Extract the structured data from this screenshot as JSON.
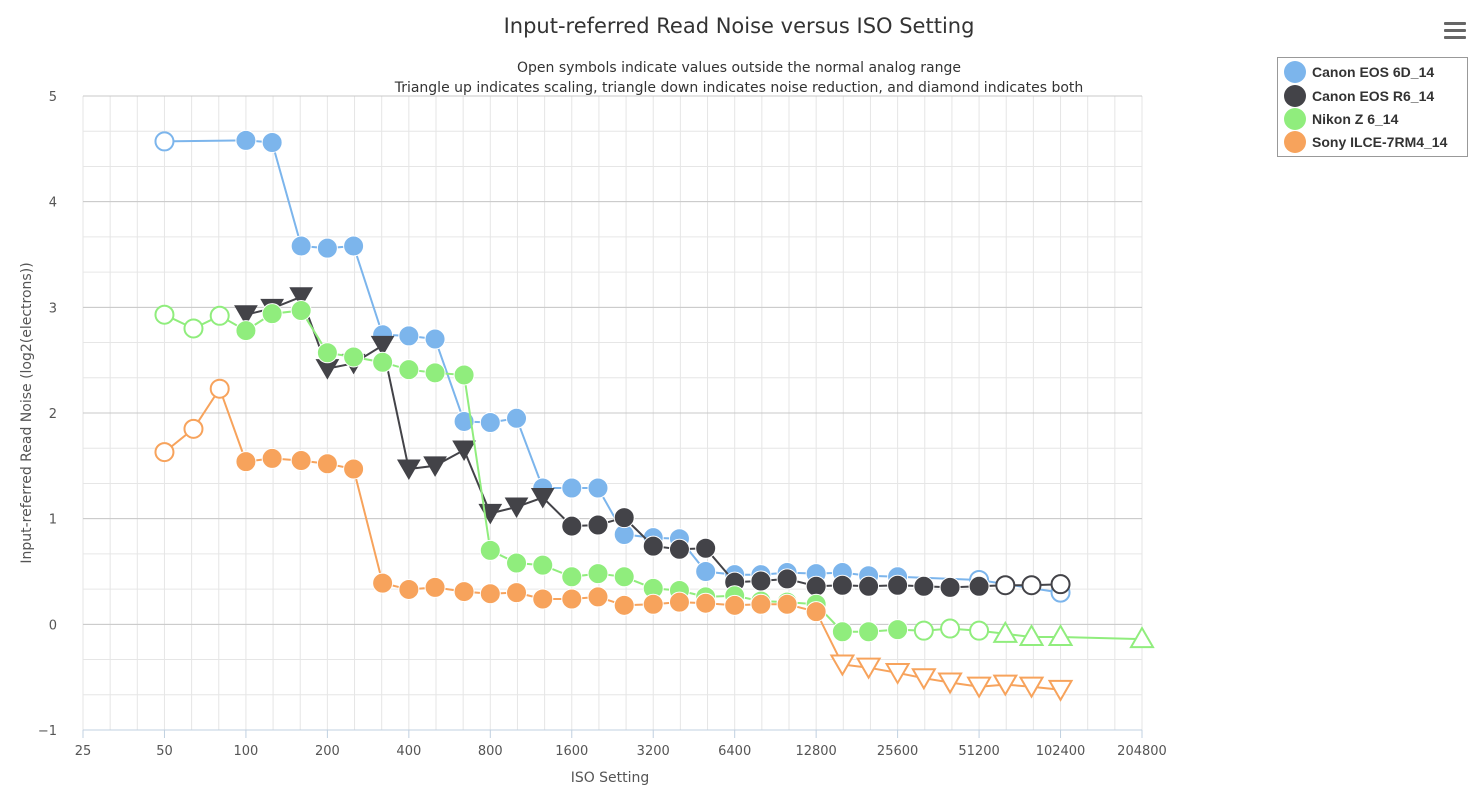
{
  "chart_data": {
    "type": "line",
    "title": "Input-referred Read Noise versus ISO Setting",
    "subtitle": [
      "Open symbols indicate values outside the normal analog range",
      "Triangle up indicates scaling, triangle down indicates noise reduction, and diamond indicates both"
    ],
    "xlabel": "ISO Setting",
    "ylabel": "Input-referred Read Noise (log2(electrons))",
    "x_scale": "log2",
    "xlim": [
      25,
      204800
    ],
    "ylim": [
      -1,
      5
    ],
    "x_ticks": [
      25,
      50,
      100,
      200,
      400,
      800,
      1600,
      3200,
      6400,
      12800,
      25600,
      51200,
      102400,
      204800
    ],
    "y_ticks": [
      -1,
      0,
      1,
      2,
      3,
      4,
      5
    ],
    "grid": true,
    "legend_position": "top-right",
    "series": [
      {
        "name": "Canon EOS 6D_14",
        "color": "#7cb5ec",
        "points": [
          {
            "x": 50,
            "y": 4.57,
            "marker": "circle",
            "open": true
          },
          {
            "x": 100,
            "y": 4.58,
            "marker": "circle"
          },
          {
            "x": 125,
            "y": 4.56,
            "marker": "circle"
          },
          {
            "x": 160,
            "y": 3.58,
            "marker": "circle"
          },
          {
            "x": 200,
            "y": 3.56,
            "marker": "circle"
          },
          {
            "x": 250,
            "y": 3.58,
            "marker": "circle"
          },
          {
            "x": 320,
            "y": 2.74,
            "marker": "circle"
          },
          {
            "x": 400,
            "y": 2.73,
            "marker": "circle"
          },
          {
            "x": 500,
            "y": 2.7,
            "marker": "circle"
          },
          {
            "x": 640,
            "y": 1.92,
            "marker": "circle"
          },
          {
            "x": 800,
            "y": 1.91,
            "marker": "circle"
          },
          {
            "x": 1000,
            "y": 1.95,
            "marker": "circle"
          },
          {
            "x": 1250,
            "y": 1.29,
            "marker": "circle"
          },
          {
            "x": 1600,
            "y": 1.29,
            "marker": "circle"
          },
          {
            "x": 2000,
            "y": 1.29,
            "marker": "circle"
          },
          {
            "x": 2500,
            "y": 0.85,
            "marker": "circle"
          },
          {
            "x": 3200,
            "y": 0.82,
            "marker": "circle"
          },
          {
            "x": 4000,
            "y": 0.81,
            "marker": "circle"
          },
          {
            "x": 5000,
            "y": 0.5,
            "marker": "circle"
          },
          {
            "x": 6400,
            "y": 0.47,
            "marker": "circle"
          },
          {
            "x": 8000,
            "y": 0.47,
            "marker": "circle"
          },
          {
            "x": 10000,
            "y": 0.49,
            "marker": "circle"
          },
          {
            "x": 12800,
            "y": 0.48,
            "marker": "circle"
          },
          {
            "x": 16000,
            "y": 0.49,
            "marker": "circle"
          },
          {
            "x": 20000,
            "y": 0.46,
            "marker": "circle"
          },
          {
            "x": 25600,
            "y": 0.45,
            "marker": "circle"
          },
          {
            "x": 51200,
            "y": 0.42,
            "marker": "circle",
            "open": true
          },
          {
            "x": 102400,
            "y": 0.3,
            "marker": "circle",
            "open": true
          }
        ]
      },
      {
        "name": "Canon EOS R6_14",
        "color": "#434348",
        "points": [
          {
            "x": 100,
            "y": 2.93,
            "marker": "triangle-down"
          },
          {
            "x": 125,
            "y": 2.99,
            "marker": "triangle-down"
          },
          {
            "x": 160,
            "y": 3.1,
            "marker": "triangle-down"
          },
          {
            "x": 200,
            "y": 2.42,
            "marker": "triangle-down"
          },
          {
            "x": 250,
            "y": 2.47,
            "marker": "triangle-down"
          },
          {
            "x": 320,
            "y": 2.64,
            "marker": "triangle-down"
          },
          {
            "x": 400,
            "y": 1.47,
            "marker": "triangle-down"
          },
          {
            "x": 500,
            "y": 1.5,
            "marker": "triangle-down"
          },
          {
            "x": 640,
            "y": 1.65,
            "marker": "triangle-down"
          },
          {
            "x": 800,
            "y": 1.05,
            "marker": "triangle-down"
          },
          {
            "x": 1000,
            "y": 1.11,
            "marker": "triangle-down"
          },
          {
            "x": 1250,
            "y": 1.2,
            "marker": "triangle-down"
          },
          {
            "x": 1600,
            "y": 0.93,
            "marker": "circle"
          },
          {
            "x": 2000,
            "y": 0.94,
            "marker": "circle"
          },
          {
            "x": 2500,
            "y": 1.01,
            "marker": "circle"
          },
          {
            "x": 3200,
            "y": 0.74,
            "marker": "circle"
          },
          {
            "x": 4000,
            "y": 0.71,
            "marker": "circle"
          },
          {
            "x": 5000,
            "y": 0.72,
            "marker": "circle"
          },
          {
            "x": 6400,
            "y": 0.4,
            "marker": "circle"
          },
          {
            "x": 8000,
            "y": 0.41,
            "marker": "circle"
          },
          {
            "x": 10000,
            "y": 0.43,
            "marker": "circle"
          },
          {
            "x": 12800,
            "y": 0.36,
            "marker": "circle"
          },
          {
            "x": 16000,
            "y": 0.37,
            "marker": "circle"
          },
          {
            "x": 20000,
            "y": 0.36,
            "marker": "circle"
          },
          {
            "x": 25600,
            "y": 0.37,
            "marker": "circle"
          },
          {
            "x": 32000,
            "y": 0.36,
            "marker": "circle"
          },
          {
            "x": 40000,
            "y": 0.35,
            "marker": "circle"
          },
          {
            "x": 51200,
            "y": 0.36,
            "marker": "circle"
          },
          {
            "x": 64000,
            "y": 0.37,
            "marker": "circle",
            "open": true
          },
          {
            "x": 80000,
            "y": 0.37,
            "marker": "circle",
            "open": true
          },
          {
            "x": 102400,
            "y": 0.38,
            "marker": "circle",
            "open": true
          }
        ]
      },
      {
        "name": "Nikon Z 6_14",
        "color": "#90ed7d",
        "points": [
          {
            "x": 50,
            "y": 2.93,
            "marker": "circle",
            "open": true
          },
          {
            "x": 64,
            "y": 2.8,
            "marker": "circle",
            "open": true
          },
          {
            "x": 80,
            "y": 2.92,
            "marker": "circle",
            "open": true
          },
          {
            "x": 100,
            "y": 2.78,
            "marker": "circle"
          },
          {
            "x": 125,
            "y": 2.94,
            "marker": "circle"
          },
          {
            "x": 160,
            "y": 2.97,
            "marker": "circle"
          },
          {
            "x": 200,
            "y": 2.57,
            "marker": "circle"
          },
          {
            "x": 250,
            "y": 2.53,
            "marker": "circle"
          },
          {
            "x": 320,
            "y": 2.48,
            "marker": "circle"
          },
          {
            "x": 400,
            "y": 2.41,
            "marker": "circle"
          },
          {
            "x": 500,
            "y": 2.38,
            "marker": "circle"
          },
          {
            "x": 640,
            "y": 2.36,
            "marker": "circle"
          },
          {
            "x": 800,
            "y": 0.7,
            "marker": "circle"
          },
          {
            "x": 1000,
            "y": 0.58,
            "marker": "circle"
          },
          {
            "x": 1250,
            "y": 0.56,
            "marker": "circle"
          },
          {
            "x": 1600,
            "y": 0.45,
            "marker": "circle"
          },
          {
            "x": 2000,
            "y": 0.48,
            "marker": "circle"
          },
          {
            "x": 2500,
            "y": 0.45,
            "marker": "circle"
          },
          {
            "x": 3200,
            "y": 0.34,
            "marker": "circle"
          },
          {
            "x": 4000,
            "y": 0.32,
            "marker": "circle"
          },
          {
            "x": 5000,
            "y": 0.26,
            "marker": "circle"
          },
          {
            "x": 6400,
            "y": 0.27,
            "marker": "circle"
          },
          {
            "x": 8000,
            "y": 0.22,
            "marker": "circle"
          },
          {
            "x": 10000,
            "y": 0.21,
            "marker": "circle"
          },
          {
            "x": 12800,
            "y": 0.19,
            "marker": "circle"
          },
          {
            "x": 16000,
            "y": -0.07,
            "marker": "circle"
          },
          {
            "x": 20000,
            "y": -0.07,
            "marker": "circle"
          },
          {
            "x": 25600,
            "y": -0.05,
            "marker": "circle"
          },
          {
            "x": 32000,
            "y": -0.06,
            "marker": "circle",
            "open": true
          },
          {
            "x": 40000,
            "y": -0.04,
            "marker": "circle",
            "open": true
          },
          {
            "x": 51200,
            "y": -0.06,
            "marker": "circle",
            "open": true
          },
          {
            "x": 64000,
            "y": -0.09,
            "marker": "triangle-up",
            "open": true
          },
          {
            "x": 80000,
            "y": -0.12,
            "marker": "triangle-up",
            "open": true
          },
          {
            "x": 102400,
            "y": -0.12,
            "marker": "triangle-up",
            "open": true
          },
          {
            "x": 204800,
            "y": -0.14,
            "marker": "triangle-up",
            "open": true
          }
        ]
      },
      {
        "name": "Sony ILCE-7RM4_14",
        "color": "#f7a35c",
        "points": [
          {
            "x": 50,
            "y": 1.63,
            "marker": "circle",
            "open": true
          },
          {
            "x": 64,
            "y": 1.85,
            "marker": "circle",
            "open": true
          },
          {
            "x": 80,
            "y": 2.23,
            "marker": "circle",
            "open": true
          },
          {
            "x": 100,
            "y": 1.54,
            "marker": "circle"
          },
          {
            "x": 125,
            "y": 1.57,
            "marker": "circle"
          },
          {
            "x": 160,
            "y": 1.55,
            "marker": "circle"
          },
          {
            "x": 200,
            "y": 1.52,
            "marker": "circle"
          },
          {
            "x": 250,
            "y": 1.47,
            "marker": "circle"
          },
          {
            "x": 320,
            "y": 0.39,
            "marker": "circle"
          },
          {
            "x": 400,
            "y": 0.33,
            "marker": "circle"
          },
          {
            "x": 500,
            "y": 0.35,
            "marker": "circle"
          },
          {
            "x": 640,
            "y": 0.31,
            "marker": "circle"
          },
          {
            "x": 800,
            "y": 0.29,
            "marker": "circle"
          },
          {
            "x": 1000,
            "y": 0.3,
            "marker": "circle"
          },
          {
            "x": 1250,
            "y": 0.24,
            "marker": "circle"
          },
          {
            "x": 1600,
            "y": 0.24,
            "marker": "circle"
          },
          {
            "x": 2000,
            "y": 0.26,
            "marker": "circle"
          },
          {
            "x": 2500,
            "y": 0.18,
            "marker": "circle"
          },
          {
            "x": 3200,
            "y": 0.19,
            "marker": "circle"
          },
          {
            "x": 4000,
            "y": 0.21,
            "marker": "circle"
          },
          {
            "x": 5000,
            "y": 0.2,
            "marker": "circle"
          },
          {
            "x": 6400,
            "y": 0.18,
            "marker": "circle"
          },
          {
            "x": 8000,
            "y": 0.19,
            "marker": "circle"
          },
          {
            "x": 10000,
            "y": 0.19,
            "marker": "circle"
          },
          {
            "x": 12800,
            "y": 0.12,
            "marker": "circle"
          },
          {
            "x": 16000,
            "y": -0.38,
            "marker": "triangle-down",
            "open": true
          },
          {
            "x": 20000,
            "y": -0.41,
            "marker": "triangle-down",
            "open": true
          },
          {
            "x": 25600,
            "y": -0.46,
            "marker": "triangle-down",
            "open": true
          },
          {
            "x": 32000,
            "y": -0.51,
            "marker": "triangle-down",
            "open": true
          },
          {
            "x": 40000,
            "y": -0.55,
            "marker": "triangle-down",
            "open": true
          },
          {
            "x": 51200,
            "y": -0.59,
            "marker": "triangle-down",
            "open": true
          },
          {
            "x": 64000,
            "y": -0.57,
            "marker": "triangle-down",
            "open": true
          },
          {
            "x": 80000,
            "y": -0.59,
            "marker": "triangle-down",
            "open": true
          },
          {
            "x": 102400,
            "y": -0.62,
            "marker": "triangle-down",
            "open": true
          }
        ]
      }
    ]
  },
  "menu": {
    "icon": "hamburger-menu-icon"
  }
}
